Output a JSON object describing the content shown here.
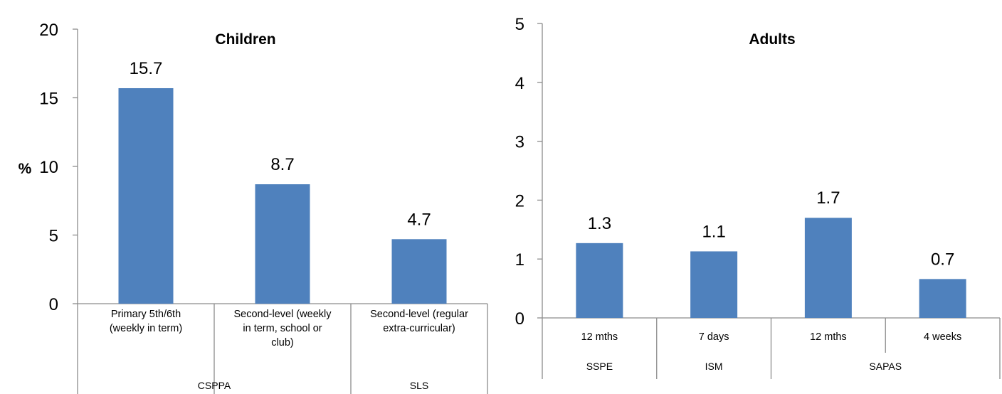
{
  "colors": {
    "bar": "#4f81bd",
    "axis": "#8c8c8c"
  },
  "chart_data": [
    {
      "type": "bar",
      "title": "Children",
      "ylabel": "%",
      "ylim": [
        0,
        20
      ],
      "yticks": [
        "0",
        "5",
        "10",
        "15",
        "20"
      ],
      "categories": [
        [
          "Primary 5th/6th",
          "(weekly in term)"
        ],
        [
          "Second-level (weekly",
          "in term, school or",
          "club)"
        ],
        [
          "Second-level (regular",
          "extra-curricular)"
        ]
      ],
      "groups": [
        {
          "label": "CSPPA",
          "span": 2
        },
        {
          "label": "SLS",
          "span": 1
        }
      ],
      "values": [
        15.7,
        8.7,
        4.7
      ],
      "value_labels": [
        "15.7",
        "8.7",
        "4.7"
      ],
      "grid": false,
      "legend": "none"
    },
    {
      "type": "bar",
      "title": "Adults",
      "ylabel": "",
      "ylim": [
        0,
        5
      ],
      "yticks": [
        "0",
        "1",
        "2",
        "3",
        "4",
        "5"
      ],
      "categories": [
        [
          "12 mths"
        ],
        [
          "7 days"
        ],
        [
          "12 mths"
        ],
        [
          "4 weeks"
        ]
      ],
      "groups": [
        {
          "label": "SSPE",
          "span": 1
        },
        {
          "label": "ISM",
          "span": 1
        },
        {
          "label": "SAPAS",
          "span": 2
        }
      ],
      "values": [
        1.27,
        1.13,
        1.7,
        0.66
      ],
      "value_labels": [
        "1.3",
        "1.1",
        "1.7",
        "0.7"
      ],
      "grid": false,
      "legend": "none"
    }
  ]
}
